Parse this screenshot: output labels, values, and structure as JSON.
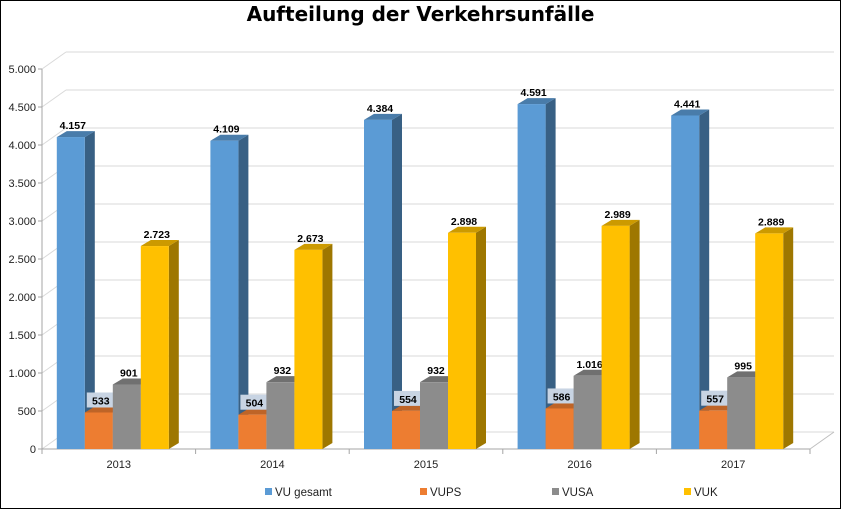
{
  "chart_data": {
    "type": "bar",
    "title": "Aufteilung der Verkehrsunfälle",
    "xlabel": "",
    "ylabel": "",
    "ylim": [
      0,
      5000
    ],
    "yticks": [
      0,
      500,
      1000,
      1500,
      2000,
      2500,
      3000,
      3500,
      4000,
      4500,
      5000
    ],
    "ytick_labels": [
      "0",
      "500",
      "1.000",
      "1.500",
      "2.000",
      "2.500",
      "3.000",
      "3.500",
      "4.000",
      "4.500",
      "5.000"
    ],
    "grid": true,
    "legend_position": "bottom",
    "categories": [
      "2013",
      "2014",
      "2015",
      "2016",
      "2017"
    ],
    "series": [
      {
        "name": "VU gesamt",
        "color": "#5b9bd5",
        "values": [
          4157,
          4109,
          4384,
          4591,
          4441
        ],
        "labels": [
          "4.157",
          "4.109",
          "4.384",
          "4.591",
          "4.441"
        ]
      },
      {
        "name": "VUPS",
        "color": "#ed7d31",
        "values": [
          533,
          504,
          554,
          586,
          557
        ],
        "labels": [
          "533",
          "504",
          "554",
          "586",
          "557"
        ]
      },
      {
        "name": "VUSA",
        "color": "#8c8c8c",
        "values": [
          901,
          932,
          932,
          1016,
          995
        ],
        "labels": [
          "901",
          "932",
          "932",
          "1.016",
          "995"
        ]
      },
      {
        "name": "VUK",
        "color": "#ffc000",
        "values": [
          2723,
          2673,
          2898,
          2989,
          2889
        ],
        "labels": [
          "2.723",
          "2.673",
          "2.898",
          "2.989",
          "2.889"
        ]
      }
    ]
  }
}
